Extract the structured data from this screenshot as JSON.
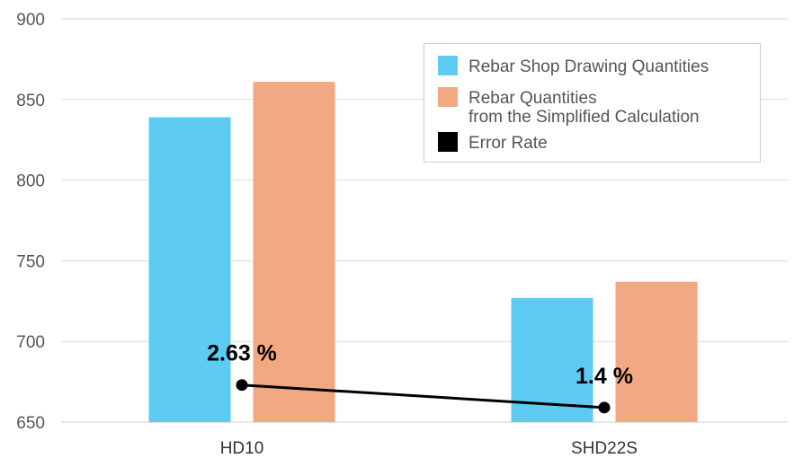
{
  "chart_data": {
    "type": "bar",
    "categories": [
      "HD10",
      "SHD22S"
    ],
    "series": [
      {
        "name": "Rebar Shop Drawing Quantities",
        "values": [
          839,
          727
        ],
        "color": "#5ECBF3"
      },
      {
        "name": "Rebar Quantities\nfrom the Simplified Calculation",
        "values": [
          861,
          737
        ],
        "color": "#F2A983"
      }
    ],
    "error_rate": {
      "name": "Error Rate",
      "values": [
        673,
        659
      ],
      "labels": [
        "2.63 %",
        "1.4 %"
      ],
      "color": "#000000"
    },
    "ylim": [
      650,
      900
    ],
    "yticks": [
      650,
      700,
      750,
      800,
      850,
      900
    ],
    "grid": true,
    "legend_position": "top-right",
    "title": "",
    "xlabel": "",
    "ylabel": ""
  }
}
